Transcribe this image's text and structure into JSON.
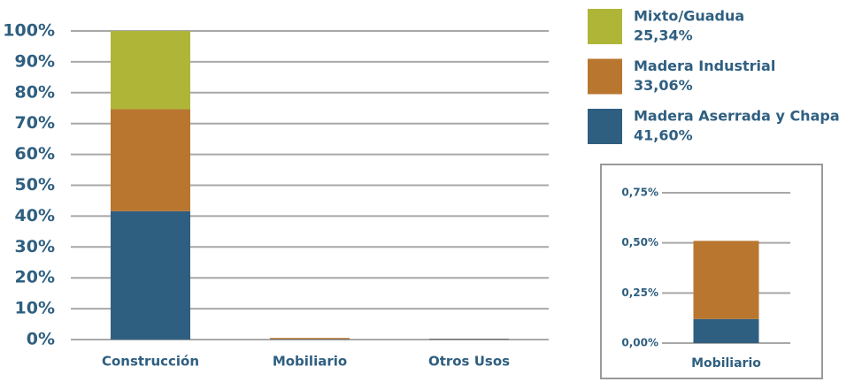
{
  "chart_data": [
    {
      "type": "stacked_bar",
      "categories": [
        "Construcción",
        "Mobiliario",
        "Otros Usos"
      ],
      "series": [
        {
          "name": "Madera Aserrada y Chapa",
          "color": "#2f5f80",
          "values": [
            41.6,
            0.12,
            0.2
          ],
          "value_labels": [
            "41,60%",
            null,
            null
          ]
        },
        {
          "name": "Madera Industrial",
          "color": "#b8762f",
          "values": [
            33.06,
            0.39,
            0.1
          ],
          "value_labels": [
            "33,06%",
            null,
            null
          ]
        },
        {
          "name": "Mixto/Guadua",
          "color": "#afb537",
          "values": [
            25.34,
            0,
            0
          ],
          "value_labels": [
            "25,34%",
            null,
            null
          ]
        }
      ],
      "ylim": [
        0,
        100
      ],
      "yticks": [
        {
          "value": 0,
          "label": "0%"
        },
        {
          "value": 10,
          "label": "10%"
        },
        {
          "value": 20,
          "label": "20%"
        },
        {
          "value": 30,
          "label": "30%"
        },
        {
          "value": 40,
          "label": "40%"
        },
        {
          "value": 50,
          "label": "50%"
        },
        {
          "value": 60,
          "label": "60%"
        },
        {
          "value": 70,
          "label": "70%"
        },
        {
          "value": 80,
          "label": "80%"
        },
        {
          "value": 90,
          "label": "90%"
        },
        {
          "value": 100,
          "label": "100%"
        }
      ],
      "grid": true,
      "legend": "top-right"
    },
    {
      "type": "stacked_bar",
      "categories": [
        "Mobiliario"
      ],
      "series": [
        {
          "color": "#2f5f80",
          "values": [
            0.12
          ]
        },
        {
          "color": "#b8762f",
          "values": [
            0.39
          ]
        }
      ],
      "ylim": [
        0,
        0.75
      ],
      "yticks": [
        {
          "value": 0,
          "label": "0,00%"
        },
        {
          "value": 0.25,
          "label": "0,25%"
        },
        {
          "value": 0.5,
          "label": "0,50%"
        },
        {
          "value": 0.75,
          "label": "0,75%"
        }
      ],
      "grid": true
    }
  ]
}
